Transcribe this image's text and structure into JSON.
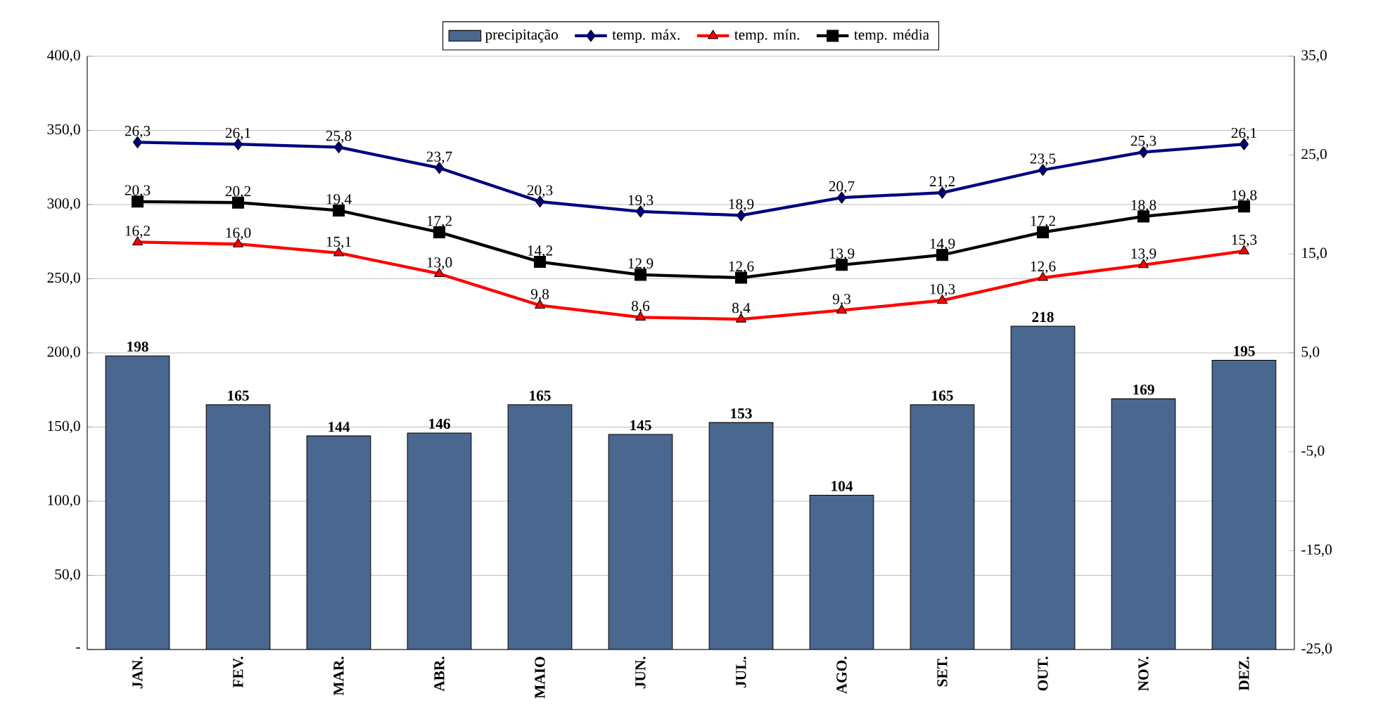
{
  "chart_data": {
    "type": "bar",
    "categories": [
      "JAN.",
      "FEV.",
      "MAR.",
      "ABR.",
      "MAIO",
      "JUN.",
      "JUL.",
      "AGO.",
      "SET.",
      "OUT.",
      "NOV.",
      "DEZ."
    ],
    "series": [
      {
        "name": "precipitação",
        "color": "#4a6790",
        "values": [
          198,
          165,
          144,
          146,
          165,
          145,
          153,
          104,
          165,
          218,
          169,
          195
        ],
        "value_labels": [
          "198",
          "165",
          "144",
          "146",
          "165",
          "145",
          "153",
          "104",
          "165",
          "218",
          "169",
          "195"
        ]
      },
      {
        "name": "temp. máx.",
        "type": "line",
        "axis": "y2",
        "marker": "diamond",
        "color": "#000080",
        "values": [
          26.3,
          26.1,
          25.8,
          23.7,
          20.3,
          19.3,
          18.9,
          20.7,
          21.2,
          23.5,
          25.3,
          26.1
        ],
        "value_labels": [
          "26,3",
          "26,1",
          "25,8",
          "23,7",
          "20,3",
          "19,3",
          "18,9",
          "20,7",
          "21,2",
          "23,5",
          "25,3",
          "26,1"
        ]
      },
      {
        "name": "temp. mín.",
        "type": "line",
        "axis": "y2",
        "marker": "triangle",
        "color": "#ff0000",
        "values": [
          16.2,
          16.0,
          15.1,
          13.0,
          9.8,
          8.6,
          8.4,
          9.3,
          10.3,
          12.6,
          13.9,
          15.3
        ],
        "value_labels": [
          "16,2",
          "16,0",
          "15,1",
          "13,0",
          "9,8",
          "8,6",
          "8,4",
          "9,3",
          "10,3",
          "12,6",
          "13,9",
          "15,3"
        ]
      },
      {
        "name": "temp. média",
        "type": "line",
        "axis": "y2",
        "marker": "square",
        "color": "#000000",
        "values": [
          20.3,
          20.2,
          19.4,
          17.2,
          14.2,
          12.9,
          12.6,
          13.9,
          14.9,
          17.2,
          18.8,
          19.8
        ],
        "value_labels": [
          "20,3",
          "20,2",
          "19,4",
          "17,2",
          "14,2",
          "12,9",
          "12,6",
          "13,9",
          "14,9",
          "17,2",
          "18,8",
          "19,8"
        ]
      }
    ],
    "ylim": [
      0,
      400
    ],
    "yticks": [
      {
        "value": 0,
        "label": "-"
      },
      {
        "value": 50,
        "label": "50,0"
      },
      {
        "value": 100,
        "label": "100,0"
      },
      {
        "value": 150,
        "label": "150,0"
      },
      {
        "value": 200,
        "label": "200,0"
      },
      {
        "value": 250,
        "label": "250,0"
      },
      {
        "value": 300,
        "label": "300,0"
      },
      {
        "value": 350,
        "label": "350,0"
      },
      {
        "value": 400,
        "label": "400,0"
      }
    ],
    "y2lim": [
      -25,
      35
    ],
    "y2ticks": [
      {
        "value": -25,
        "label": "-25,0"
      },
      {
        "value": -15,
        "label": "-15,0"
      },
      {
        "value": -5,
        "label": "-5,0"
      },
      {
        "value": 5,
        "label": "5,0"
      },
      {
        "value": 15,
        "label": "15,0"
      },
      {
        "value": 25,
        "label": "25,0"
      },
      {
        "value": 35,
        "label": "35,0"
      }
    ],
    "grid": "y",
    "legend": "top"
  }
}
